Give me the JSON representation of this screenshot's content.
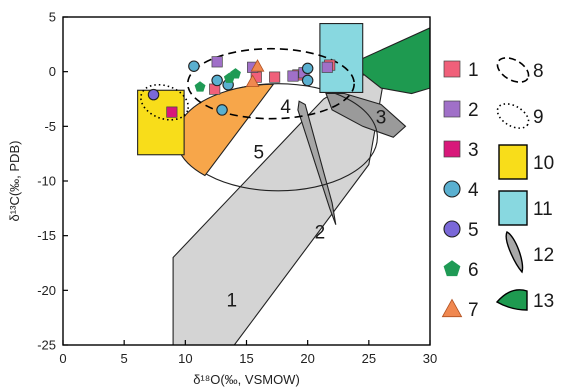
{
  "chart_data": {
    "type": "scatter",
    "xlabel": "δ¹⁸O(‰, VSMOW)",
    "ylabel": "δ¹³C(‰, PDB)",
    "xlim": [
      0,
      30
    ],
    "ylim": [
      -25,
      5
    ],
    "xticks": [
      "0",
      "5",
      "10",
      "15",
      "20",
      "25",
      "30"
    ],
    "yticks": [
      "5",
      "0",
      "-5",
      "-10",
      "-15",
      "-20",
      "-25"
    ],
    "legend_placement": "right",
    "grid": false,
    "legend": [
      {
        "key": "1",
        "label": "1",
        "marker": "square",
        "color": "#f0607a"
      },
      {
        "key": "2",
        "label": "2",
        "marker": "square",
        "color": "#a070c8"
      },
      {
        "key": "3",
        "label": "3",
        "marker": "square",
        "color": "#d8187a"
      },
      {
        "key": "4",
        "label": "4",
        "marker": "circle",
        "color": "#5ab0d0"
      },
      {
        "key": "5",
        "label": "5",
        "marker": "circle",
        "color": "#7a68d8"
      },
      {
        "key": "6",
        "label": "6",
        "marker": "pentagon",
        "color": "#1f9a55"
      },
      {
        "key": "7",
        "label": "7",
        "marker": "triangle",
        "color": "#f08850"
      },
      {
        "key": "8",
        "label": "8",
        "marker": "dashed-ellipse",
        "color": "#000000"
      },
      {
        "key": "9",
        "label": "9",
        "marker": "dotted-ellipse",
        "color": "#000000"
      },
      {
        "key": "10",
        "label": "10",
        "marker": "rect",
        "color": "#f8dd1a"
      },
      {
        "key": "11",
        "label": "11",
        "marker": "rect",
        "color": "#88d8e0"
      },
      {
        "key": "12",
        "label": "12",
        "marker": "leaf",
        "color": "#a8a8a8"
      },
      {
        "key": "13",
        "label": "13",
        "marker": "wedge",
        "color": "#1e9a50"
      }
    ],
    "regions": [
      {
        "id": "1",
        "label": "1",
        "color": "#d4d4d4",
        "points": [
          [
            9,
            -17
          ],
          [
            21.3,
            -2.5
          ],
          [
            26.5,
            1
          ],
          [
            25,
            -8.5
          ],
          [
            14,
            -25
          ],
          [
            9,
            -25
          ]
        ],
        "label_at": [
          13.8,
          -21
        ]
      },
      {
        "id": "2",
        "label": "2",
        "color": "#a6a6a6",
        "points": [
          [
            19.3,
            -2.7
          ],
          [
            19.8,
            -3
          ],
          [
            22,
            -12
          ],
          [
            22.3,
            -14
          ],
          [
            21.8,
            -12.5
          ],
          [
            19.2,
            -3.5
          ]
        ],
        "label_at": [
          21,
          -14.8
        ]
      },
      {
        "id": "3",
        "label": "3",
        "color": "#9a9a9a",
        "points": [
          [
            21.5,
            -2
          ],
          [
            23,
            -2
          ],
          [
            26,
            -3
          ],
          [
            28,
            -5
          ],
          [
            27,
            -6
          ],
          [
            24.5,
            -5
          ],
          [
            22,
            -3.5
          ]
        ],
        "label_at": [
          26,
          -4.3
        ]
      },
      {
        "id": "13",
        "label": "",
        "color": "#1e9a50",
        "points": [
          [
            23.5,
            0.7
          ],
          [
            30,
            4
          ],
          [
            30,
            -1.5
          ],
          [
            28.5,
            -2
          ],
          [
            26,
            -1.5
          ]
        ]
      },
      {
        "id": "5",
        "label": "5",
        "color": "#f7a64a",
        "ellipse": {
          "cx": 17.6,
          "cy": -6,
          "rx": 8.1,
          "ry": 4.9
        },
        "label_at": [
          16,
          -7.5
        ]
      },
      {
        "id": "10",
        "label": "",
        "color": "#f8dd1a",
        "rect": [
          [
            6.1,
            -1.7
          ],
          [
            9.9,
            -7.6
          ]
        ]
      },
      {
        "id": "11",
        "label": "",
        "color": "#88d8e0",
        "rect": [
          [
            21,
            4.4
          ],
          [
            24.5,
            -1.9
          ]
        ]
      },
      {
        "id": "8",
        "label": "",
        "color": "#000000",
        "dashed_ellipse": {
          "cx": 17,
          "cy": -1.1,
          "rx": 6.8,
          "ry": 3.2
        }
      },
      {
        "id": "9",
        "label": "",
        "color": "#000000",
        "dotted_ellipse": {
          "cx": 8.3,
          "cy": -2.8,
          "rx": 2,
          "ry": 1.5,
          "rotation_deg": 20
        }
      }
    ],
    "region_text": [
      {
        "label": "4",
        "at": [
          18.2,
          -3.3
        ]
      }
    ],
    "series": [
      {
        "name": "1",
        "marker": "square",
        "color": "#f0607a",
        "points": [
          [
            12.4,
            -1.6
          ],
          [
            15.8,
            -0.5
          ],
          [
            17.3,
            -0.5
          ],
          [
            19.2,
            -0.3
          ],
          [
            21.8,
            0.6
          ]
        ]
      },
      {
        "name": "2",
        "marker": "square",
        "color": "#a070c8",
        "points": [
          [
            12.6,
            0.9
          ],
          [
            15.5,
            0.4
          ],
          [
            18.8,
            -0.4
          ],
          [
            19.7,
            -0.1
          ],
          [
            21.6,
            0.4
          ]
        ]
      },
      {
        "name": "3",
        "marker": "square",
        "color": "#d8187a",
        "points": [
          [
            8.9,
            -3.7
          ]
        ]
      },
      {
        "name": "4",
        "marker": "circle",
        "color": "#5ab0d0",
        "points": [
          [
            10.7,
            0.5
          ],
          [
            12.6,
            -0.8
          ],
          [
            13.5,
            -1.2
          ],
          [
            13,
            -3.5
          ],
          [
            20,
            0.3
          ],
          [
            20,
            -0.8
          ]
        ]
      },
      {
        "name": "5",
        "marker": "circle",
        "color": "#7a68d8",
        "points": [
          [
            7.4,
            -2.1
          ]
        ]
      },
      {
        "name": "6",
        "marker": "pentagon",
        "color": "#1f9a55",
        "points": [
          [
            11.2,
            -1.4
          ],
          [
            13.6,
            -0.6
          ],
          [
            14.1,
            -0.2
          ]
        ]
      },
      {
        "name": "7",
        "marker": "triangle",
        "color": "#f08850",
        "points": [
          [
            15.5,
            -0.9
          ],
          [
            15.9,
            0.5
          ]
        ]
      }
    ]
  }
}
